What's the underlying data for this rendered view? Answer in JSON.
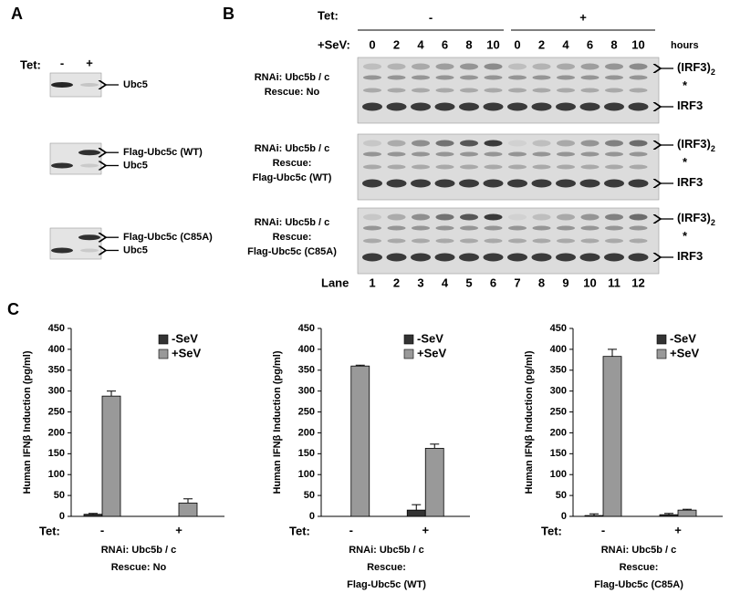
{
  "panel_a": {
    "label": "A",
    "tet_label": "Tet:",
    "tet": [
      "-",
      "+"
    ],
    "blots": [
      {
        "bands": [
          "Ubc5"
        ]
      },
      {
        "bands": [
          "Flag-Ubc5c (WT)",
          "Ubc5"
        ]
      },
      {
        "bands": [
          "Flag-Ubc5c (C85A)",
          "Ubc5"
        ]
      }
    ]
  },
  "panel_b": {
    "label": "B",
    "tet_label": "Tet:",
    "tet": [
      "-",
      "+"
    ],
    "sev_label": "+SeV:",
    "hours": [
      0,
      2,
      4,
      6,
      8,
      10,
      0,
      2,
      4,
      6,
      8,
      10
    ],
    "hours_unit": "hours",
    "lane_label": "Lane",
    "lanes": [
      1,
      2,
      3,
      4,
      5,
      6,
      7,
      8,
      9,
      10,
      11,
      12
    ],
    "blots": [
      {
        "condition": [
          "RNAi: Ubc5b / c",
          "Rescue: No"
        ]
      },
      {
        "condition": [
          "RNAi: Ubc5b / c",
          "Rescue:",
          "Flag-Ubc5c (WT)"
        ]
      },
      {
        "condition": [
          "RNAi: Ubc5b / c",
          "Rescue:",
          "Flag-Ubc5c (C85A)"
        ]
      }
    ],
    "band_labels": [
      {
        "text": "(IRF3)",
        "sub": "2"
      },
      {
        "text": "*"
      },
      {
        "text": "IRF3"
      }
    ]
  },
  "panel_c": {
    "label": "C"
  },
  "chart_data": [
    {
      "type": "bar",
      "ylabel": "Human IFNβ Induction (pg/ml)",
      "xlabel": "Tet:",
      "categories": [
        "-",
        "+"
      ],
      "series": [
        {
          "name": "-SeV",
          "color": "#333333",
          "values": [
            5,
            0
          ],
          "errors": [
            2,
            0
          ]
        },
        {
          "name": "+SeV",
          "color": "#999999",
          "values": [
            288,
            32
          ],
          "errors": [
            12,
            10
          ]
        }
      ],
      "ylim": [
        0,
        450
      ],
      "yticks": [
        0,
        50,
        100,
        150,
        200,
        250,
        300,
        350,
        400,
        450
      ],
      "caption": [
        "RNAi: Ubc5b / c",
        "Rescue: No"
      ]
    },
    {
      "type": "bar",
      "ylabel": "Human IFNβ Induction (pg/ml)",
      "xlabel": "Tet:",
      "categories": [
        "-",
        "+"
      ],
      "series": [
        {
          "name": "-SeV",
          "color": "#333333",
          "values": [
            0,
            15
          ],
          "errors": [
            0,
            13
          ]
        },
        {
          "name": "+SeV",
          "color": "#999999",
          "values": [
            360,
            163
          ],
          "errors": [
            2,
            10
          ]
        }
      ],
      "ylim": [
        0,
        450
      ],
      "yticks": [
        0,
        50,
        100,
        150,
        200,
        250,
        300,
        350,
        400,
        450
      ],
      "caption": [
        "RNAi: Ubc5b / c",
        "Rescue:",
        "Flag-Ubc5c (WT)"
      ]
    },
    {
      "type": "bar",
      "ylabel": "Human IFNβ Induction (pg/ml)",
      "xlabel": "Tet:",
      "categories": [
        "-",
        "+"
      ],
      "series": [
        {
          "name": "-SeV",
          "color": "#333333",
          "values": [
            2,
            4
          ],
          "errors": [
            4,
            3
          ]
        },
        {
          "name": "+SeV",
          "color": "#999999",
          "values": [
            383,
            15
          ],
          "errors": [
            17,
            2
          ]
        }
      ],
      "ylim": [
        0,
        450
      ],
      "yticks": [
        0,
        50,
        100,
        150,
        200,
        250,
        300,
        350,
        400,
        450
      ],
      "caption": [
        "RNAi: Ubc5b / c",
        "Rescue:",
        "Flag-Ubc5c (C85A)"
      ]
    }
  ]
}
